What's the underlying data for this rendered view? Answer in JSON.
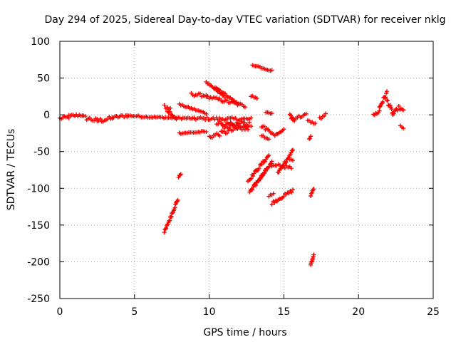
{
  "chart_data": {
    "type": "scatter",
    "title": "Day 294 of 2025, Sidereal Day-to-day VTEC variation (SDTVAR) for receiver nklg",
    "xlabel": "GPS time / hours",
    "ylabel": "SDTVAR / TECUs",
    "xlim": [
      0,
      25
    ],
    "ylim": [
      -250,
      100
    ],
    "xticks": [
      0,
      5,
      10,
      15,
      20,
      25
    ],
    "yticks": [
      -250,
      -200,
      -150,
      -100,
      -50,
      0,
      50,
      100
    ],
    "xtick_labels": [
      "0",
      "5",
      "10",
      "15",
      "20",
      "25"
    ],
    "ytick_labels": [
      "-250",
      "-200",
      "-150",
      "-100",
      "-50",
      "0",
      "50",
      "100"
    ],
    "grid": true,
    "marker": "+",
    "color": "#ff0000",
    "segments": [
      {
        "x0": 0.0,
        "y0": -5,
        "x1": 0.6,
        "y1": -3,
        "jitter": 2
      },
      {
        "x0": 0.6,
        "y0": -2,
        "x1": 1.5,
        "y1": 0,
        "jitter": 2
      },
      {
        "x0": 1.5,
        "y0": -3,
        "x1": 2.5,
        "y1": -8,
        "jitter": 3
      },
      {
        "x0": 2.5,
        "y0": -8,
        "x1": 3.5,
        "y1": -5,
        "jitter": 3
      },
      {
        "x0": 3.5,
        "y0": -4,
        "x1": 4.5,
        "y1": -1,
        "jitter": 2
      },
      {
        "x0": 4.5,
        "y0": -1,
        "x1": 6.0,
        "y1": -3,
        "jitter": 1
      },
      {
        "x0": 6.0,
        "y0": -3,
        "x1": 7.5,
        "y1": -4,
        "jitter": 1
      },
      {
        "x0": 7.5,
        "y0": -4,
        "x1": 9.0,
        "y1": -5,
        "jitter": 1
      },
      {
        "x0": 9.0,
        "y0": -5,
        "x1": 12.8,
        "y1": -6,
        "jitter": 2
      },
      {
        "x0": 7.0,
        "y0": 12,
        "x1": 7.4,
        "y1": 8,
        "jitter": 3
      },
      {
        "x0": 7.2,
        "y0": 5,
        "x1": 7.8,
        "y1": -3,
        "jitter": 4
      },
      {
        "x0": 7.0,
        "y0": -160,
        "x1": 7.9,
        "y1": -115,
        "jitter": 2
      },
      {
        "x0": 7.95,
        "y0": -85,
        "x1": 8.1,
        "y1": -80,
        "jitter": 1
      },
      {
        "x0": 8.0,
        "y0": 14,
        "x1": 9.8,
        "y1": 2,
        "jitter": 1
      },
      {
        "x0": 8.0,
        "y0": -25,
        "x1": 9.8,
        "y1": -23,
        "jitter": 1
      },
      {
        "x0": 8.8,
        "y0": 28,
        "x1": 9.8,
        "y1": 26,
        "jitter": 2
      },
      {
        "x0": 9.8,
        "y0": 44,
        "x1": 11.0,
        "y1": 25,
        "jitter": 1
      },
      {
        "x0": 9.8,
        "y0": 25,
        "x1": 12.4,
        "y1": 12,
        "jitter": 2
      },
      {
        "x0": 10.4,
        "y0": 38,
        "x1": 12.0,
        "y1": 14,
        "jitter": 1
      },
      {
        "x0": 10.0,
        "y0": -30,
        "x1": 12.6,
        "y1": -15,
        "jitter": 3
      },
      {
        "x0": 10.5,
        "y0": -10,
        "x1": 12.6,
        "y1": -20,
        "jitter": 3
      },
      {
        "x0": 10.8,
        "y0": -15,
        "x1": 12.8,
        "y1": -12,
        "jitter": 4
      },
      {
        "x0": 12.8,
        "y0": 26,
        "x1": 13.2,
        "y1": 22,
        "jitter": 1
      },
      {
        "x0": 12.9,
        "y0": 68,
        "x1": 14.2,
        "y1": 60,
        "jitter": 1
      },
      {
        "x0": 13.5,
        "y0": -15,
        "x1": 14.3,
        "y1": -25,
        "jitter": 2
      },
      {
        "x0": 13.8,
        "y0": 3,
        "x1": 14.2,
        "y1": 2,
        "jitter": 1
      },
      {
        "x0": 13.5,
        "y0": -28,
        "x1": 14.0,
        "y1": -33,
        "jitter": 1
      },
      {
        "x0": 12.6,
        "y0": -90,
        "x1": 14.0,
        "y1": -55,
        "jitter": 2
      },
      {
        "x0": 12.7,
        "y0": -105,
        "x1": 14.2,
        "y1": -65,
        "jitter": 2
      },
      {
        "x0": 13.0,
        "y0": -98,
        "x1": 13.8,
        "y1": -75,
        "jitter": 2
      },
      {
        "x0": 14.0,
        "y0": -110,
        "x1": 14.3,
        "y1": -108,
        "jitter": 1
      },
      {
        "x0": 14.4,
        "y0": -28,
        "x1": 15.0,
        "y1": -20,
        "jitter": 1
      },
      {
        "x0": 14.2,
        "y0": -70,
        "x1": 15.5,
        "y1": -70,
        "jitter": 3
      },
      {
        "x0": 14.6,
        "y0": -80,
        "x1": 15.6,
        "y1": -48,
        "jitter": 2
      },
      {
        "x0": 14.2,
        "y0": -120,
        "x1": 15.6,
        "y1": -103,
        "jitter": 2
      },
      {
        "x0": 15.5,
        "y0": -5,
        "x1": 15.7,
        "y1": -8,
        "jitter": 1
      },
      {
        "x0": 15.4,
        "y0": 0,
        "x1": 15.6,
        "y1": -5,
        "jitter": 1
      },
      {
        "x0": 15.4,
        "y0": -60,
        "x1": 15.6,
        "y1": -62,
        "jitter": 1
      },
      {
        "x0": 15.6,
        "y0": -5,
        "x1": 16.5,
        "y1": 0,
        "jitter": 2
      },
      {
        "x0": 16.6,
        "y0": -8,
        "x1": 17.1,
        "y1": -12,
        "jitter": 1
      },
      {
        "x0": 17.4,
        "y0": -5,
        "x1": 17.8,
        "y1": 0,
        "jitter": 2
      },
      {
        "x0": 16.7,
        "y0": -33,
        "x1": 16.8,
        "y1": -30,
        "jitter": 1
      },
      {
        "x0": 16.8,
        "y0": -110,
        "x1": 17.0,
        "y1": -100,
        "jitter": 1
      },
      {
        "x0": 16.8,
        "y0": -205,
        "x1": 17.0,
        "y1": -190,
        "jitter": 1
      },
      {
        "x0": 21.0,
        "y0": -1,
        "x1": 21.4,
        "y1": 5,
        "jitter": 2
      },
      {
        "x0": 21.4,
        "y0": 10,
        "x1": 21.9,
        "y1": 30,
        "jitter": 3
      },
      {
        "x0": 21.9,
        "y0": 20,
        "x1": 22.3,
        "y1": 2,
        "jitter": 3
      },
      {
        "x0": 22.3,
        "y0": 0,
        "x1": 22.6,
        "y1": 8,
        "jitter": 2
      },
      {
        "x0": 22.7,
        "y0": 10,
        "x1": 23.0,
        "y1": 5,
        "jitter": 2
      },
      {
        "x0": 22.8,
        "y0": -15,
        "x1": 23.0,
        "y1": -18,
        "jitter": 1
      }
    ]
  }
}
